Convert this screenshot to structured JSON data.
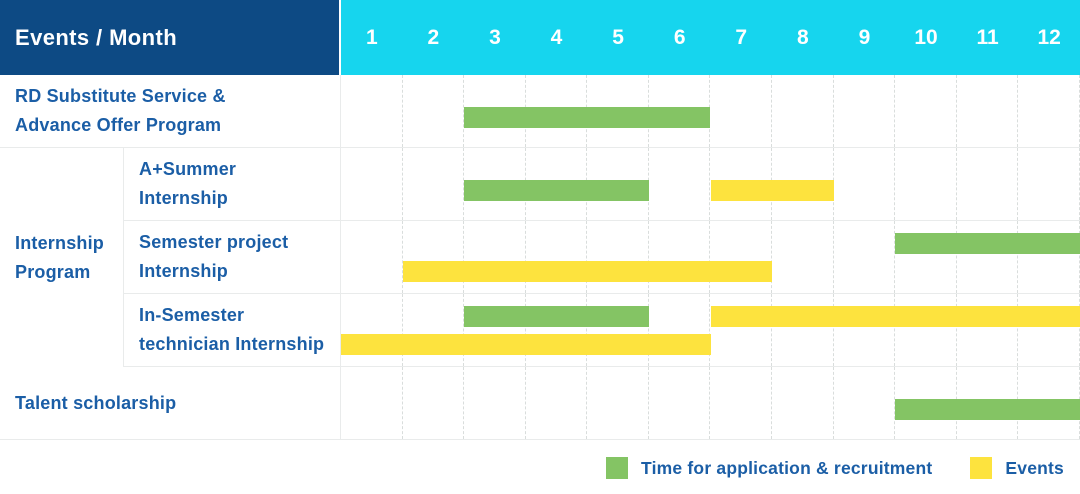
{
  "header": {
    "corner_label": "Events / Month",
    "months": [
      "1",
      "2",
      "3",
      "4",
      "5",
      "6",
      "7",
      "8",
      "9",
      "10",
      "11",
      "12"
    ]
  },
  "colors": {
    "header_navy": "#0d4a84",
    "header_cyan": "#16d5ee",
    "bar_green": "#84c464",
    "bar_yellow": "#fde33e",
    "label_blue": "#1b5ea6",
    "grid_solid": "#e9ebeb",
    "grid_dashed": "#d9dddc"
  },
  "table": {
    "sections": [
      {
        "type": "simple",
        "label_lines": [
          "RD Substitute Service &",
          "Advance Offer Program"
        ],
        "row_key": 0
      },
      {
        "type": "group",
        "label_lines": [
          "Internship",
          "Program"
        ],
        "children": [
          {
            "label_lines": [
              "A+Summer",
              "Internship"
            ],
            "row_key": 1
          },
          {
            "label_lines": [
              "Semester project",
              "Internship"
            ],
            "row_key": 2
          },
          {
            "label_lines": [
              "In-Semester",
              "technician Internship"
            ],
            "row_key": 3
          }
        ]
      },
      {
        "type": "simple",
        "label_lines": [
          "Talent scholarship"
        ],
        "row_key": 4
      }
    ]
  },
  "legend": [
    {
      "label": "Time for application & recruitment",
      "color_key": "bar_green",
      "series": "Time for application & recruitment"
    },
    {
      "label": "Events",
      "color_key": "bar_yellow",
      "series": "Events"
    }
  ],
  "chart_data": {
    "type": "bar",
    "subtype": "gantt-schedule",
    "title": "Events / Month",
    "xlabel": "Month",
    "x_ticks": [
      1,
      2,
      3,
      4,
      5,
      6,
      7,
      8,
      9,
      10,
      11,
      12
    ],
    "x_range": [
      1,
      12
    ],
    "grid": "dashed-vertical-per-month",
    "legend_position": "bottom-right",
    "series_legend": [
      "Time for application & recruitment",
      "Events"
    ],
    "bar_unit_note": "end_month is inclusive; each bar spans from the start of start_month to the end of end_month",
    "rows": [
      {
        "label": "RD Substitute Service & Advance Offer Program",
        "group": null,
        "bars": [
          {
            "series": "Time for application & recruitment",
            "start_month": 3,
            "end_month": 6,
            "track": "single"
          }
        ]
      },
      {
        "label": "A+Summer Internship",
        "group": "Internship Program",
        "bars": [
          {
            "series": "Time for application & recruitment",
            "start_month": 3,
            "end_month": 5,
            "track": "single"
          },
          {
            "series": "Events",
            "start_month": 7,
            "end_month": 8,
            "track": "single"
          }
        ]
      },
      {
        "label": "Semester project Internship",
        "group": "Internship Program",
        "bars": [
          {
            "series": "Time for application & recruitment",
            "start_month": 10,
            "end_month": 12,
            "track": "top"
          },
          {
            "series": "Events",
            "start_month": 2,
            "end_month": 7,
            "track": "bottom"
          }
        ]
      },
      {
        "label": "In-Semester technician Internship",
        "group": "Internship Program",
        "bars": [
          {
            "series": "Time for application & recruitment",
            "start_month": 3,
            "end_month": 5,
            "track": "top"
          },
          {
            "series": "Events",
            "start_month": 7,
            "end_month": 12,
            "track": "top"
          },
          {
            "series": "Events",
            "start_month": 1,
            "end_month": 6,
            "track": "bottom"
          }
        ]
      },
      {
        "label": "Talent scholarship",
        "group": null,
        "bars": [
          {
            "series": "Time for application & recruitment",
            "start_month": 10,
            "end_month": 12,
            "track": "single"
          }
        ]
      }
    ]
  }
}
